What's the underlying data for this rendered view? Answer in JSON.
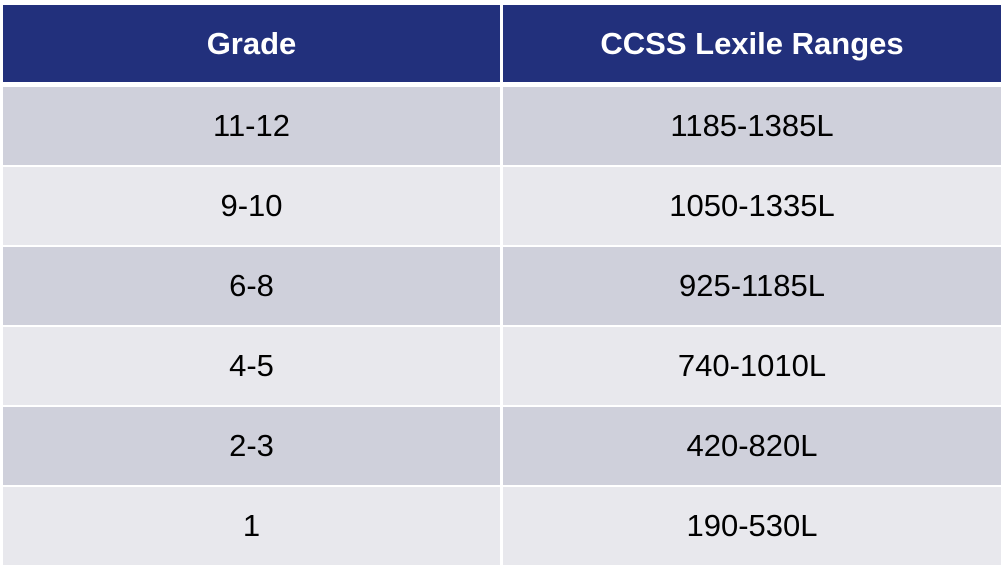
{
  "table": {
    "headers": {
      "grade": "Grade",
      "range": "CCSS Lexile Ranges"
    },
    "rows": [
      {
        "grade": "11-12",
        "range": "1185-1385L"
      },
      {
        "grade": "9-10",
        "range": "1050-1335L"
      },
      {
        "grade": "6-8",
        "range": "925-1185L"
      },
      {
        "grade": "4-5",
        "range": "740-1010L"
      },
      {
        "grade": "2-3",
        "range": "420-820L"
      },
      {
        "grade": "1",
        "range": "190-530L"
      }
    ]
  },
  "colors": {
    "header_bg": "#22307c",
    "header_text": "#ffffff",
    "row_dark": "#cfd0db",
    "row_light": "#e8e8ed"
  }
}
